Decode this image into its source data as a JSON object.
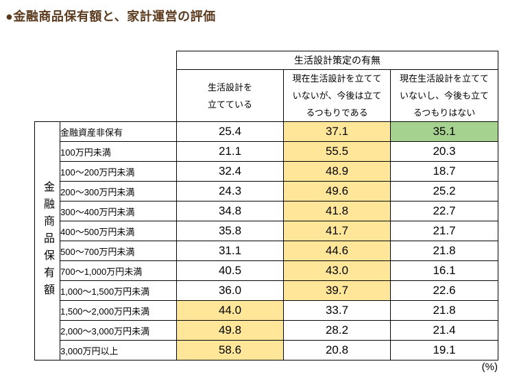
{
  "title": "●金融商品保有額と、家計運営の評価",
  "unit_label": "(%)",
  "colors": {
    "orange": "#FFE699",
    "green": "#A6D28F",
    "title_brown": "#5C3A1E",
    "border": "#000000"
  },
  "chart_data": {
    "type": "table",
    "title": "金融商品保有額と、家計運営の評価",
    "unit": "%",
    "column_group_header": "生活設計策定の有無",
    "row_group_header": "金融商品保有額",
    "columns": [
      "生活設計を\n立てている",
      "現在生活設計を立てて\nいないが、今後は立て\nるつもりである",
      "現在生活設計を立てて\nいないし、今後も立て\nるつもりはない"
    ],
    "rows": [
      {
        "label": "金融資産非保有",
        "values": [
          25.4,
          37.1,
          35.1
        ],
        "highlights": [
          "",
          "orange",
          "green"
        ]
      },
      {
        "label": "100万円未満",
        "values": [
          21.1,
          55.5,
          20.3
        ],
        "highlights": [
          "",
          "orange",
          ""
        ]
      },
      {
        "label": "100～200万円未満",
        "values": [
          32.4,
          48.9,
          18.7
        ],
        "highlights": [
          "",
          "orange",
          ""
        ]
      },
      {
        "label": "200～300万円未満",
        "values": [
          24.3,
          49.6,
          25.2
        ],
        "highlights": [
          "",
          "orange",
          ""
        ]
      },
      {
        "label": "300～400万円未満",
        "values": [
          34.8,
          41.8,
          22.7
        ],
        "highlights": [
          "",
          "orange",
          ""
        ]
      },
      {
        "label": "400～500万円未満",
        "values": [
          35.8,
          41.7,
          21.7
        ],
        "highlights": [
          "",
          "orange",
          ""
        ]
      },
      {
        "label": "500～700万円未満",
        "values": [
          31.1,
          44.6,
          21.8
        ],
        "highlights": [
          "",
          "orange",
          ""
        ]
      },
      {
        "label": "700～1,000万円未満",
        "values": [
          40.5,
          43.0,
          16.1
        ],
        "highlights": [
          "",
          "orange",
          ""
        ]
      },
      {
        "label": "1,000～1,500万円未満",
        "values": [
          36.0,
          39.7,
          22.6
        ],
        "highlights": [
          "",
          "orange",
          ""
        ]
      },
      {
        "label": "1,500～2,000万円未満",
        "values": [
          44.0,
          33.7,
          21.8
        ],
        "highlights": [
          "orange",
          "",
          ""
        ]
      },
      {
        "label": "2,000～3,000万円未満",
        "values": [
          49.8,
          28.2,
          21.4
        ],
        "highlights": [
          "orange",
          "",
          ""
        ]
      },
      {
        "label": "3,000万円以上",
        "values": [
          58.6,
          20.8,
          19.1
        ],
        "highlights": [
          "orange",
          "",
          ""
        ]
      }
    ],
    "value_format": "one-decimal"
  }
}
